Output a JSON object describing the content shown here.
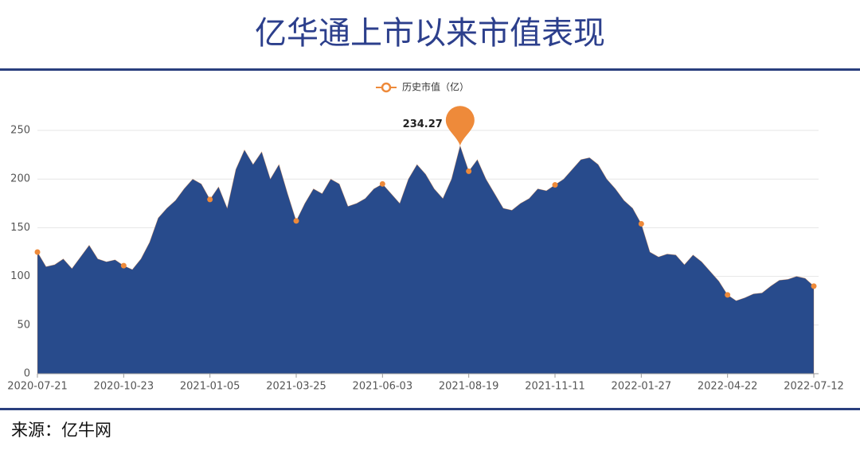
{
  "chart_data": {
    "type": "area",
    "title": "亿华通上市以来市值表现",
    "source": "来源：亿牛网",
    "categories": [
      "2020-07-21",
      null,
      null,
      null,
      null,
      null,
      null,
      null,
      null,
      null,
      "2020-10-23",
      null,
      null,
      null,
      null,
      null,
      null,
      null,
      null,
      null,
      "2021-01-05",
      null,
      null,
      null,
      null,
      null,
      null,
      null,
      null,
      null,
      "2021-03-25",
      null,
      null,
      null,
      null,
      null,
      null,
      null,
      null,
      null,
      "2021-06-03",
      null,
      null,
      null,
      null,
      null,
      null,
      null,
      null,
      null,
      "2021-08-19",
      null,
      null,
      null,
      null,
      null,
      null,
      null,
      null,
      null,
      "2021-11-11",
      null,
      null,
      null,
      null,
      null,
      null,
      null,
      null,
      null,
      "2022-01-27",
      null,
      null,
      null,
      null,
      null,
      null,
      null,
      null,
      null,
      "2022-04-22",
      null,
      null,
      null,
      null,
      null,
      null,
      null,
      null,
      null,
      "2022-07-12"
    ],
    "series": [
      {
        "name": "历史市值（亿）",
        "color": "#ee8a3a",
        "area_color": "#284b8c",
        "values": [
          125,
          110,
          112,
          118,
          108,
          120,
          132,
          118,
          115,
          117,
          111,
          107,
          118,
          135,
          160,
          170,
          178,
          190,
          200,
          195,
          179,
          192,
          170,
          210,
          230,
          215,
          228,
          200,
          215,
          185,
          157,
          175,
          190,
          185,
          200,
          195,
          172,
          175,
          180,
          190,
          195,
          185,
          175,
          200,
          215,
          205,
          190,
          180,
          200,
          234.27,
          208,
          220,
          200,
          185,
          170,
          168,
          175,
          180,
          190,
          188,
          194,
          200,
          210,
          220,
          222,
          215,
          200,
          190,
          178,
          170,
          154,
          125,
          120,
          123,
          122,
          112,
          122,
          115,
          105,
          95,
          81,
          75,
          78,
          82,
          83,
          90,
          96,
          97,
          100,
          98,
          90
        ]
      }
    ],
    "ylim": [
      0,
      250
    ],
    "yticks": [
      0,
      50,
      100,
      150,
      200,
      250
    ],
    "grid": true
  }
}
